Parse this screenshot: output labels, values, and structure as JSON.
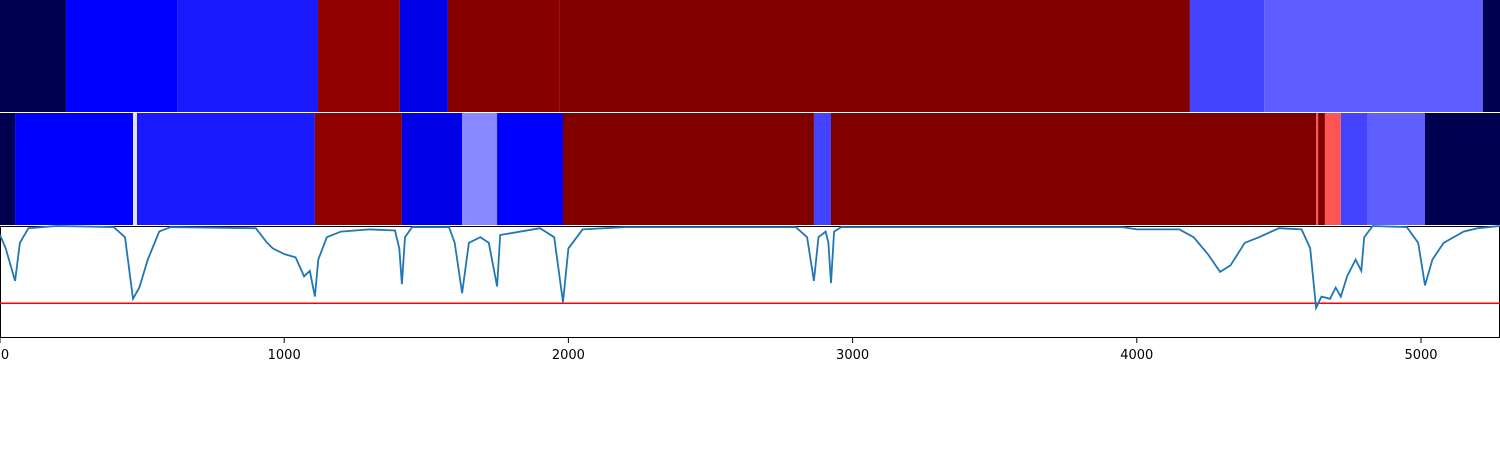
{
  "chart_data": {
    "type": "segments_line",
    "xlim": [
      0,
      5278
    ],
    "xticks": [
      0,
      1000,
      2000,
      3000,
      4000,
      5000
    ],
    "ylim": [
      0,
      1
    ],
    "strips": [
      {
        "segments": [
          {
            "start": 0,
            "end": 232,
            "color": "#000050"
          },
          {
            "start": 232,
            "end": 623,
            "color": "#0000ff"
          },
          {
            "start": 623,
            "end": 1119,
            "color": "#1a1aff"
          },
          {
            "start": 1119,
            "end": 1407,
            "color": "#900000"
          },
          {
            "start": 1407,
            "end": 1576,
            "color": "#0000e6"
          },
          {
            "start": 1576,
            "end": 1970,
            "color": "#880000"
          },
          {
            "start": 1970,
            "end": 4187,
            "color": "#800000"
          },
          {
            "start": 4187,
            "end": 4448,
            "color": "#4444ff"
          },
          {
            "start": 4448,
            "end": 5218,
            "color": "#5e5eff"
          },
          {
            "start": 5218,
            "end": 5278,
            "color": "#000050"
          }
        ]
      },
      {
        "segments": [
          {
            "start": 0,
            "end": 53,
            "color": "#000050"
          },
          {
            "start": 53,
            "end": 468,
            "color": "#0000ff"
          },
          {
            "start": 468,
            "end": 482,
            "color": "#e0e0ff"
          },
          {
            "start": 482,
            "end": 1108,
            "color": "#1a1aff"
          },
          {
            "start": 1108,
            "end": 1414,
            "color": "#900000"
          },
          {
            "start": 1414,
            "end": 1626,
            "color": "#0000e6"
          },
          {
            "start": 1626,
            "end": 1749,
            "color": "#8888ff"
          },
          {
            "start": 1749,
            "end": 1981,
            "color": "#0000ff"
          },
          {
            "start": 1981,
            "end": 2864,
            "color": "#800000"
          },
          {
            "start": 2864,
            "end": 2924,
            "color": "#4444ff"
          },
          {
            "start": 2924,
            "end": 4631,
            "color": "#800000"
          },
          {
            "start": 4631,
            "end": 4638,
            "color": "#ff5050"
          },
          {
            "start": 4638,
            "end": 4662,
            "color": "#800000"
          },
          {
            "start": 4662,
            "end": 4718,
            "color": "#ff5555"
          },
          {
            "start": 4718,
            "end": 4810,
            "color": "#4444ff"
          },
          {
            "start": 4810,
            "end": 5014,
            "color": "#6060ff"
          },
          {
            "start": 5014,
            "end": 5278,
            "color": "#000050"
          }
        ]
      }
    ],
    "threshold": {
      "value": 0.31,
      "color": "#ff0000"
    },
    "series": [
      {
        "color": "#1f77b4",
        "x": [
          0,
          20,
          53,
          70,
          100,
          200,
          400,
          440,
          468,
          490,
          520,
          560,
          600,
          900,
          940,
          960,
          1000,
          1040,
          1070,
          1090,
          1108,
          1120,
          1150,
          1200,
          1300,
          1390,
          1405,
          1414,
          1425,
          1450,
          1580,
          1600,
          1626,
          1650,
          1690,
          1720,
          1749,
          1760,
          1900,
          1950,
          1981,
          2000,
          2050,
          2200,
          2800,
          2840,
          2864,
          2880,
          2905,
          2915,
          2924,
          2935,
          2960,
          3950,
          4000,
          4150,
          4200,
          4250,
          4293,
          4330,
          4380,
          4430,
          4500,
          4580,
          4610,
          4631,
          4650,
          4680,
          4700,
          4718,
          4740,
          4770,
          4790,
          4800,
          4830,
          4950,
          4990,
          5014,
          5040,
          5080,
          5150,
          5200,
          5278
        ],
        "values": [
          0.92,
          0.8,
          0.51,
          0.85,
          0.98,
          1.0,
          0.99,
          0.9,
          0.35,
          0.45,
          0.7,
          0.95,
          0.99,
          0.98,
          0.85,
          0.8,
          0.75,
          0.72,
          0.55,
          0.6,
          0.37,
          0.7,
          0.9,
          0.95,
          0.97,
          0.96,
          0.8,
          0.48,
          0.9,
          0.99,
          0.99,
          0.85,
          0.4,
          0.85,
          0.9,
          0.85,
          0.46,
          0.92,
          0.98,
          0.9,
          0.32,
          0.8,
          0.97,
          0.99,
          0.99,
          0.9,
          0.51,
          0.9,
          0.95,
          0.85,
          0.49,
          0.95,
          0.99,
          0.99,
          0.97,
          0.97,
          0.9,
          0.75,
          0.59,
          0.65,
          0.85,
          0.9,
          0.98,
          0.97,
          0.8,
          0.27,
          0.37,
          0.35,
          0.45,
          0.37,
          0.55,
          0.7,
          0.6,
          0.9,
          1.0,
          0.99,
          0.85,
          0.47,
          0.7,
          0.85,
          0.95,
          0.98,
          1.0
        ]
      }
    ]
  }
}
